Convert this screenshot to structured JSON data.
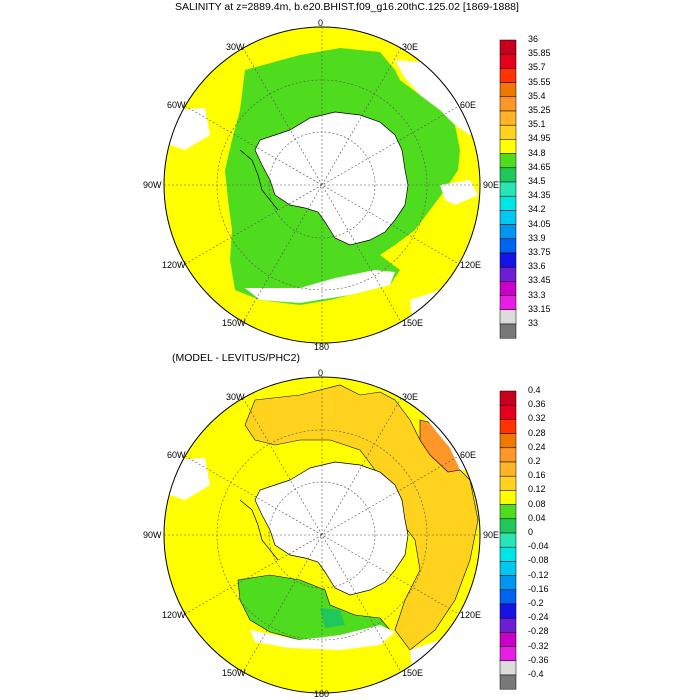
{
  "panels": [
    {
      "title": "SALINITY at z=2889.4m, b.e20.BHIST.f09_g16.20thC.125.02 [1869-1888]",
      "lon_labels": {
        "top": "0",
        "bottom": "180",
        "e30": "30E",
        "e60": "60E",
        "e90": "90E",
        "e120": "120E",
        "e150": "150E",
        "w30": "30W",
        "w60": "60W",
        "w90": "90W",
        "w120": "120W",
        "w150": "150W"
      },
      "colorbar": {
        "labels": [
          "36",
          "35.85",
          "35.7",
          "35.55",
          "35.4",
          "35.25",
          "35.1",
          "34.95",
          "34.8",
          "34.65",
          "34.5",
          "34.35",
          "34.2",
          "34.05",
          "33.9",
          "33.75",
          "33.6",
          "33.45",
          "33.3",
          "33.15",
          "33"
        ],
        "colors": [
          "#c8001e",
          "#e6001e",
          "#ff3200",
          "#f07800",
          "#ff9628",
          "#ffb428",
          "#ffd21e",
          "#ffff00",
          "#50dc1e",
          "#1ec85a",
          "#28e6b4",
          "#00e6e6",
          "#00c8f0",
          "#0096f0",
          "#0064f0",
          "#1414e6",
          "#6e1ed2",
          "#c800c8",
          "#e61ee6",
          "#dcdcdc",
          "#787878"
        ]
      },
      "fields": {
        "ocean": "#ffff00",
        "shelf": "#50dc1e",
        "land": "#ffffff"
      }
    },
    {
      "title": "(MODEL - LEVITUS/PHC2)",
      "lon_labels": {
        "top": "0",
        "bottom": "180",
        "e30": "30E",
        "e60": "60E",
        "e90": "90E",
        "e120": "120E",
        "e150": "150E",
        "w30": "30W",
        "w60": "60W",
        "w90": "90W",
        "w120": "120W",
        "w150": "150W"
      },
      "colorbar": {
        "labels": [
          "0.4",
          "0.36",
          "0.32",
          "0.28",
          "0.24",
          "0.2",
          "0.16",
          "0.12",
          "0.08",
          "0.04",
          "0",
          "-0.04",
          "-0.08",
          "-0.12",
          "-0.16",
          "-0.2",
          "-0.24",
          "-0.28",
          "-0.32",
          "-0.36",
          "-0.4"
        ],
        "colors": [
          "#c8001e",
          "#e6001e",
          "#ff3200",
          "#f07800",
          "#ff9628",
          "#ffb428",
          "#ffd21e",
          "#ffff00",
          "#50dc1e",
          "#1ec85a",
          "#28e6b4",
          "#00e6e6",
          "#00c8f0",
          "#0096f0",
          "#0064f0",
          "#1414e6",
          "#6e1ed2",
          "#c800c8",
          "#e61ee6",
          "#dcdcdc",
          "#787878"
        ]
      },
      "fields": {
        "ocean": "#ffff00",
        "positive": "#ffd21e",
        "shelf": "#50dc1e",
        "land": "#ffffff"
      }
    }
  ]
}
